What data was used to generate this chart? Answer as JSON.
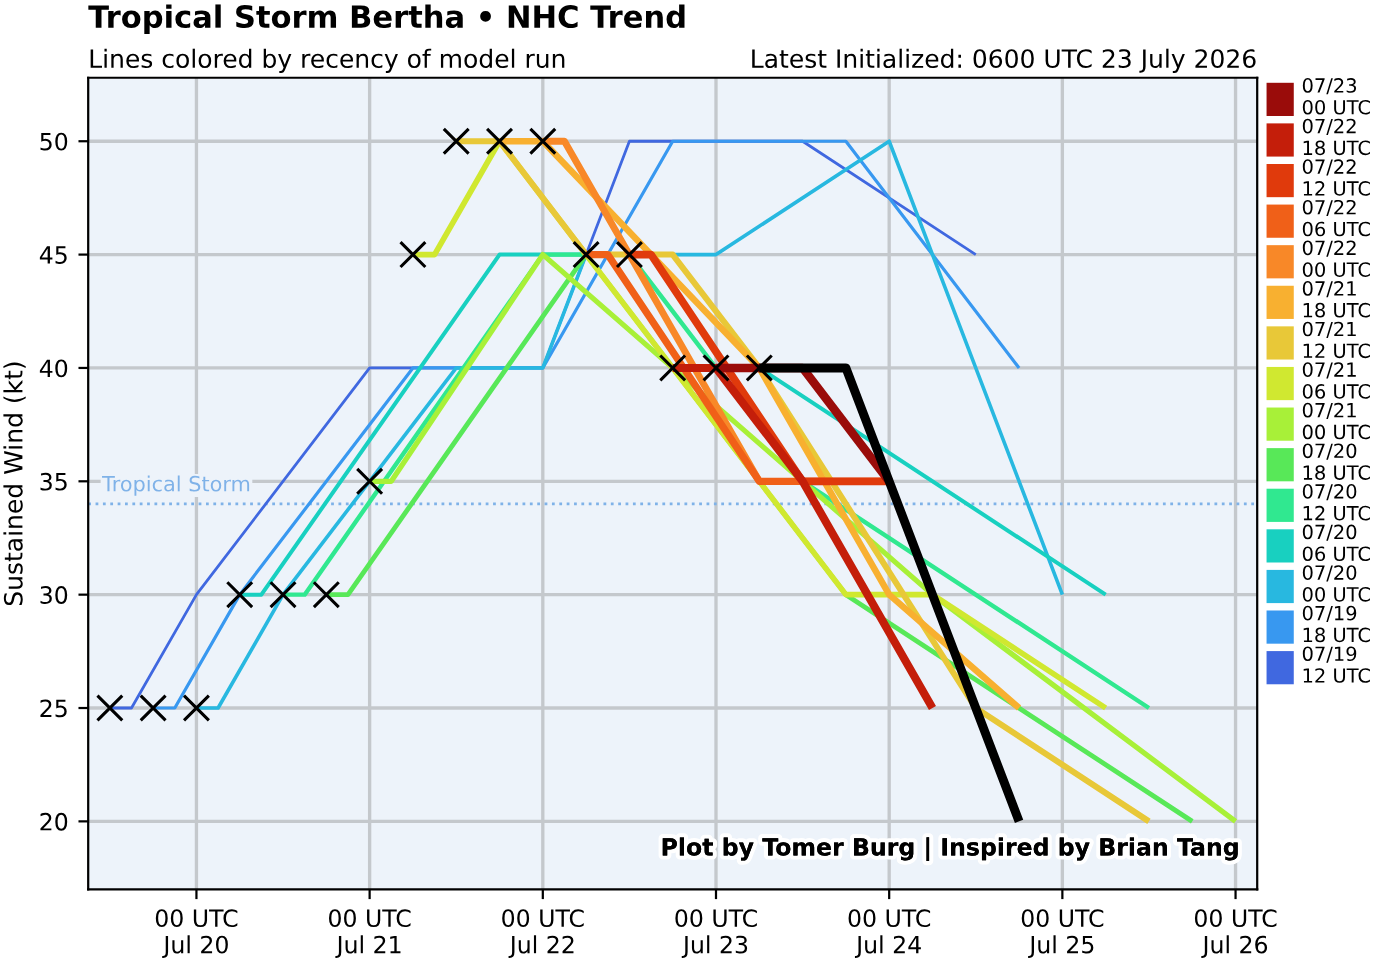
{
  "chart_data": {
    "type": "line",
    "title": "Tropical Storm Bertha • NHC Trend",
    "subtitle": "Lines colored by recency of model run",
    "ylabel": "Sustained Wind (kt)",
    "annotations": [
      "Latest Initialized: 0600 UTC 23 July 2026",
      "Plot by Tomer Burg | Inspired by Brian Tang"
    ],
    "xlim": [
      "2026-07-19T09:00",
      "2026-07-26T03:00"
    ],
    "ylim": [
      17,
      52.8
    ],
    "yticks": [
      20,
      25,
      30,
      35,
      40,
      45,
      50
    ],
    "xticks": [
      {
        "value": "2026-07-20T00:00",
        "label": "00 UTC\nJul 20"
      },
      {
        "value": "2026-07-21T00:00",
        "label": "00 UTC\nJul 21"
      },
      {
        "value": "2026-07-22T00:00",
        "label": "00 UTC\nJul 22"
      },
      {
        "value": "2026-07-23T00:00",
        "label": "00 UTC\nJul 23"
      },
      {
        "value": "2026-07-24T00:00",
        "label": "00 UTC\nJul 24"
      },
      {
        "value": "2026-07-25T00:00",
        "label": "00 UTC\nJul 25"
      },
      {
        "value": "2026-07-26T00:00",
        "label": "00 UTC\nJul 26"
      }
    ],
    "grid": true,
    "legend": "right",
    "line_style": "solid",
    "ref_lines": [
      {
        "axis": "y",
        "value": 34,
        "label": "Tropical Storm",
        "color": "#7fb2e8",
        "line_style": "dotted"
      }
    ],
    "series": [
      {
        "name": "07/19\n12 UTC",
        "color": "#4068e0",
        "x": [
          "2026-07-19T12:00",
          "2026-07-19T15:00",
          "2026-07-20T00:00",
          "2026-07-21T00:00",
          "2026-07-22T00:00",
          "2026-07-22T12:00",
          "2026-07-23T12:00",
          "2026-07-24T12:00"
        ],
        "values": [
          25,
          25,
          30,
          40,
          40,
          50,
          50,
          45
        ]
      },
      {
        "name": "07/19\n18 UTC",
        "color": "#3898f0",
        "x": [
          "2026-07-19T18:00",
          "2026-07-19T21:00",
          "2026-07-20T06:00",
          "2026-07-21T06:00",
          "2026-07-22T00:00",
          "2026-07-22T18:00",
          "2026-07-23T18:00",
          "2026-07-24T18:00"
        ],
        "values": [
          25,
          25,
          30,
          40,
          40,
          50,
          50,
          40
        ]
      },
      {
        "name": "07/20\n00 UTC",
        "color": "#28b8e0",
        "x": [
          "2026-07-20T00:00",
          "2026-07-20T03:00",
          "2026-07-20T12:00",
          "2026-07-21T12:00",
          "2026-07-22T00:00",
          "2026-07-22T06:00",
          "2026-07-23T00:00",
          "2026-07-24T00:00",
          "2026-07-25T00:00"
        ],
        "values": [
          25,
          25,
          30,
          40,
          40,
          45,
          45,
          50,
          30
        ]
      },
      {
        "name": "07/20\n06 UTC",
        "color": "#18d0c0",
        "x": [
          "2026-07-20T06:00",
          "2026-07-20T09:00",
          "2026-07-21T18:00",
          "2026-07-22T18:00",
          "2026-07-23T06:00",
          "2026-07-25T06:00"
        ],
        "values": [
          30,
          30,
          45,
          45,
          40,
          30
        ]
      },
      {
        "name": "07/20\n12 UTC",
        "color": "#30e890",
        "x": [
          "2026-07-20T12:00",
          "2026-07-20T15:00",
          "2026-07-22T00:00",
          "2026-07-22T12:00",
          "2026-07-23T12:00",
          "2026-07-25T12:00"
        ],
        "values": [
          30,
          30,
          45,
          45,
          35,
          25
        ]
      },
      {
        "name": "07/20\n18 UTC",
        "color": "#58e858",
        "x": [
          "2026-07-20T18:00",
          "2026-07-20T21:00",
          "2026-07-22T06:00",
          "2026-07-23T18:00",
          "2026-07-25T18:00"
        ],
        "values": [
          30,
          30,
          45,
          30,
          20
        ]
      },
      {
        "name": "07/21\n00 UTC",
        "color": "#a8f038",
        "x": [
          "2026-07-21T00:00",
          "2026-07-21T03:00",
          "2026-07-22T00:00",
          "2026-07-24T06:00",
          "2026-07-26T00:00"
        ],
        "values": [
          35,
          35,
          45,
          30,
          20
        ]
      },
      {
        "name": "07/21\n06 UTC",
        "color": "#d0e830",
        "x": [
          "2026-07-21T06:00",
          "2026-07-21T09:00",
          "2026-07-21T18:00",
          "2026-07-23T18:00",
          "2026-07-24T06:00",
          "2026-07-25T06:00"
        ],
        "values": [
          45,
          45,
          50,
          30,
          30,
          25
        ]
      },
      {
        "name": "07/21\n12 UTC",
        "color": "#e8c838",
        "x": [
          "2026-07-21T12:00",
          "2026-07-21T18:00",
          "2026-07-22T06:00",
          "2026-07-22T18:00",
          "2026-07-23T06:00",
          "2026-07-24T12:00",
          "2026-07-25T12:00"
        ],
        "values": [
          50,
          50,
          45,
          45,
          40,
          25,
          20
        ]
      },
      {
        "name": "07/21\n18 UTC",
        "color": "#f8b030",
        "x": [
          "2026-07-21T18:00",
          "2026-07-22T00:00",
          "2026-07-23T06:00",
          "2026-07-24T00:00",
          "2026-07-24T18:00"
        ],
        "values": [
          50,
          50,
          40,
          30,
          25
        ]
      },
      {
        "name": "07/22\n00 UTC",
        "color": "#f88828",
        "x": [
          "2026-07-22T00:00",
          "2026-07-22T03:00",
          "2026-07-22T12:00",
          "2026-07-23T06:00",
          "2026-07-24T00:00",
          "2026-07-24T12:00"
        ],
        "values": [
          50,
          50,
          45,
          35,
          35,
          25
        ]
      },
      {
        "name": "07/22\n06 UTC",
        "color": "#f06018",
        "x": [
          "2026-07-22T06:00",
          "2026-07-22T09:00",
          "2026-07-23T06:00",
          "2026-07-24T00:00"
        ],
        "values": [
          45,
          45,
          35,
          35
        ]
      },
      {
        "name": "07/22\n12 UTC",
        "color": "#e03a0c",
        "x": [
          "2026-07-22T12:00",
          "2026-07-22T15:00",
          "2026-07-23T12:00",
          "2026-07-24T00:00"
        ],
        "values": [
          45,
          45,
          35,
          35
        ]
      },
      {
        "name": "07/22\n18 UTC",
        "color": "#c41e0a",
        "x": [
          "2026-07-22T18:00",
          "2026-07-23T00:00",
          "2026-07-23T12:00",
          "2026-07-24T06:00"
        ],
        "values": [
          40,
          40,
          35,
          25
        ]
      },
      {
        "name": "07/23\n00 UTC",
        "color": "#9a0c0a",
        "x": [
          "2026-07-23T00:00",
          "2026-07-23T12:00",
          "2026-07-24T00:00"
        ],
        "values": [
          40,
          40,
          35
        ]
      },
      {
        "color": "#000000",
        "x": [
          "2026-07-23T06:00",
          "2026-07-23T18:00",
          "2026-07-24T18:00"
        ],
        "values": [
          40,
          40,
          20
        ]
      },
      {
        "type": "scatter",
        "marker": "cross",
        "color": "#000000",
        "x": [
          "2026-07-19T12:00",
          "2026-07-19T18:00",
          "2026-07-20T00:00",
          "2026-07-20T06:00",
          "2026-07-20T12:00",
          "2026-07-20T18:00",
          "2026-07-21T00:00",
          "2026-07-21T06:00",
          "2026-07-21T12:00",
          "2026-07-21T18:00",
          "2026-07-22T00:00",
          "2026-07-22T06:00",
          "2026-07-22T12:00",
          "2026-07-22T18:00",
          "2026-07-23T00:00",
          "2026-07-23T06:00"
        ],
        "values": [
          25,
          25,
          25,
          30,
          30,
          30,
          35,
          45,
          50,
          50,
          50,
          45,
          45,
          40,
          40,
          40
        ]
      }
    ]
  }
}
